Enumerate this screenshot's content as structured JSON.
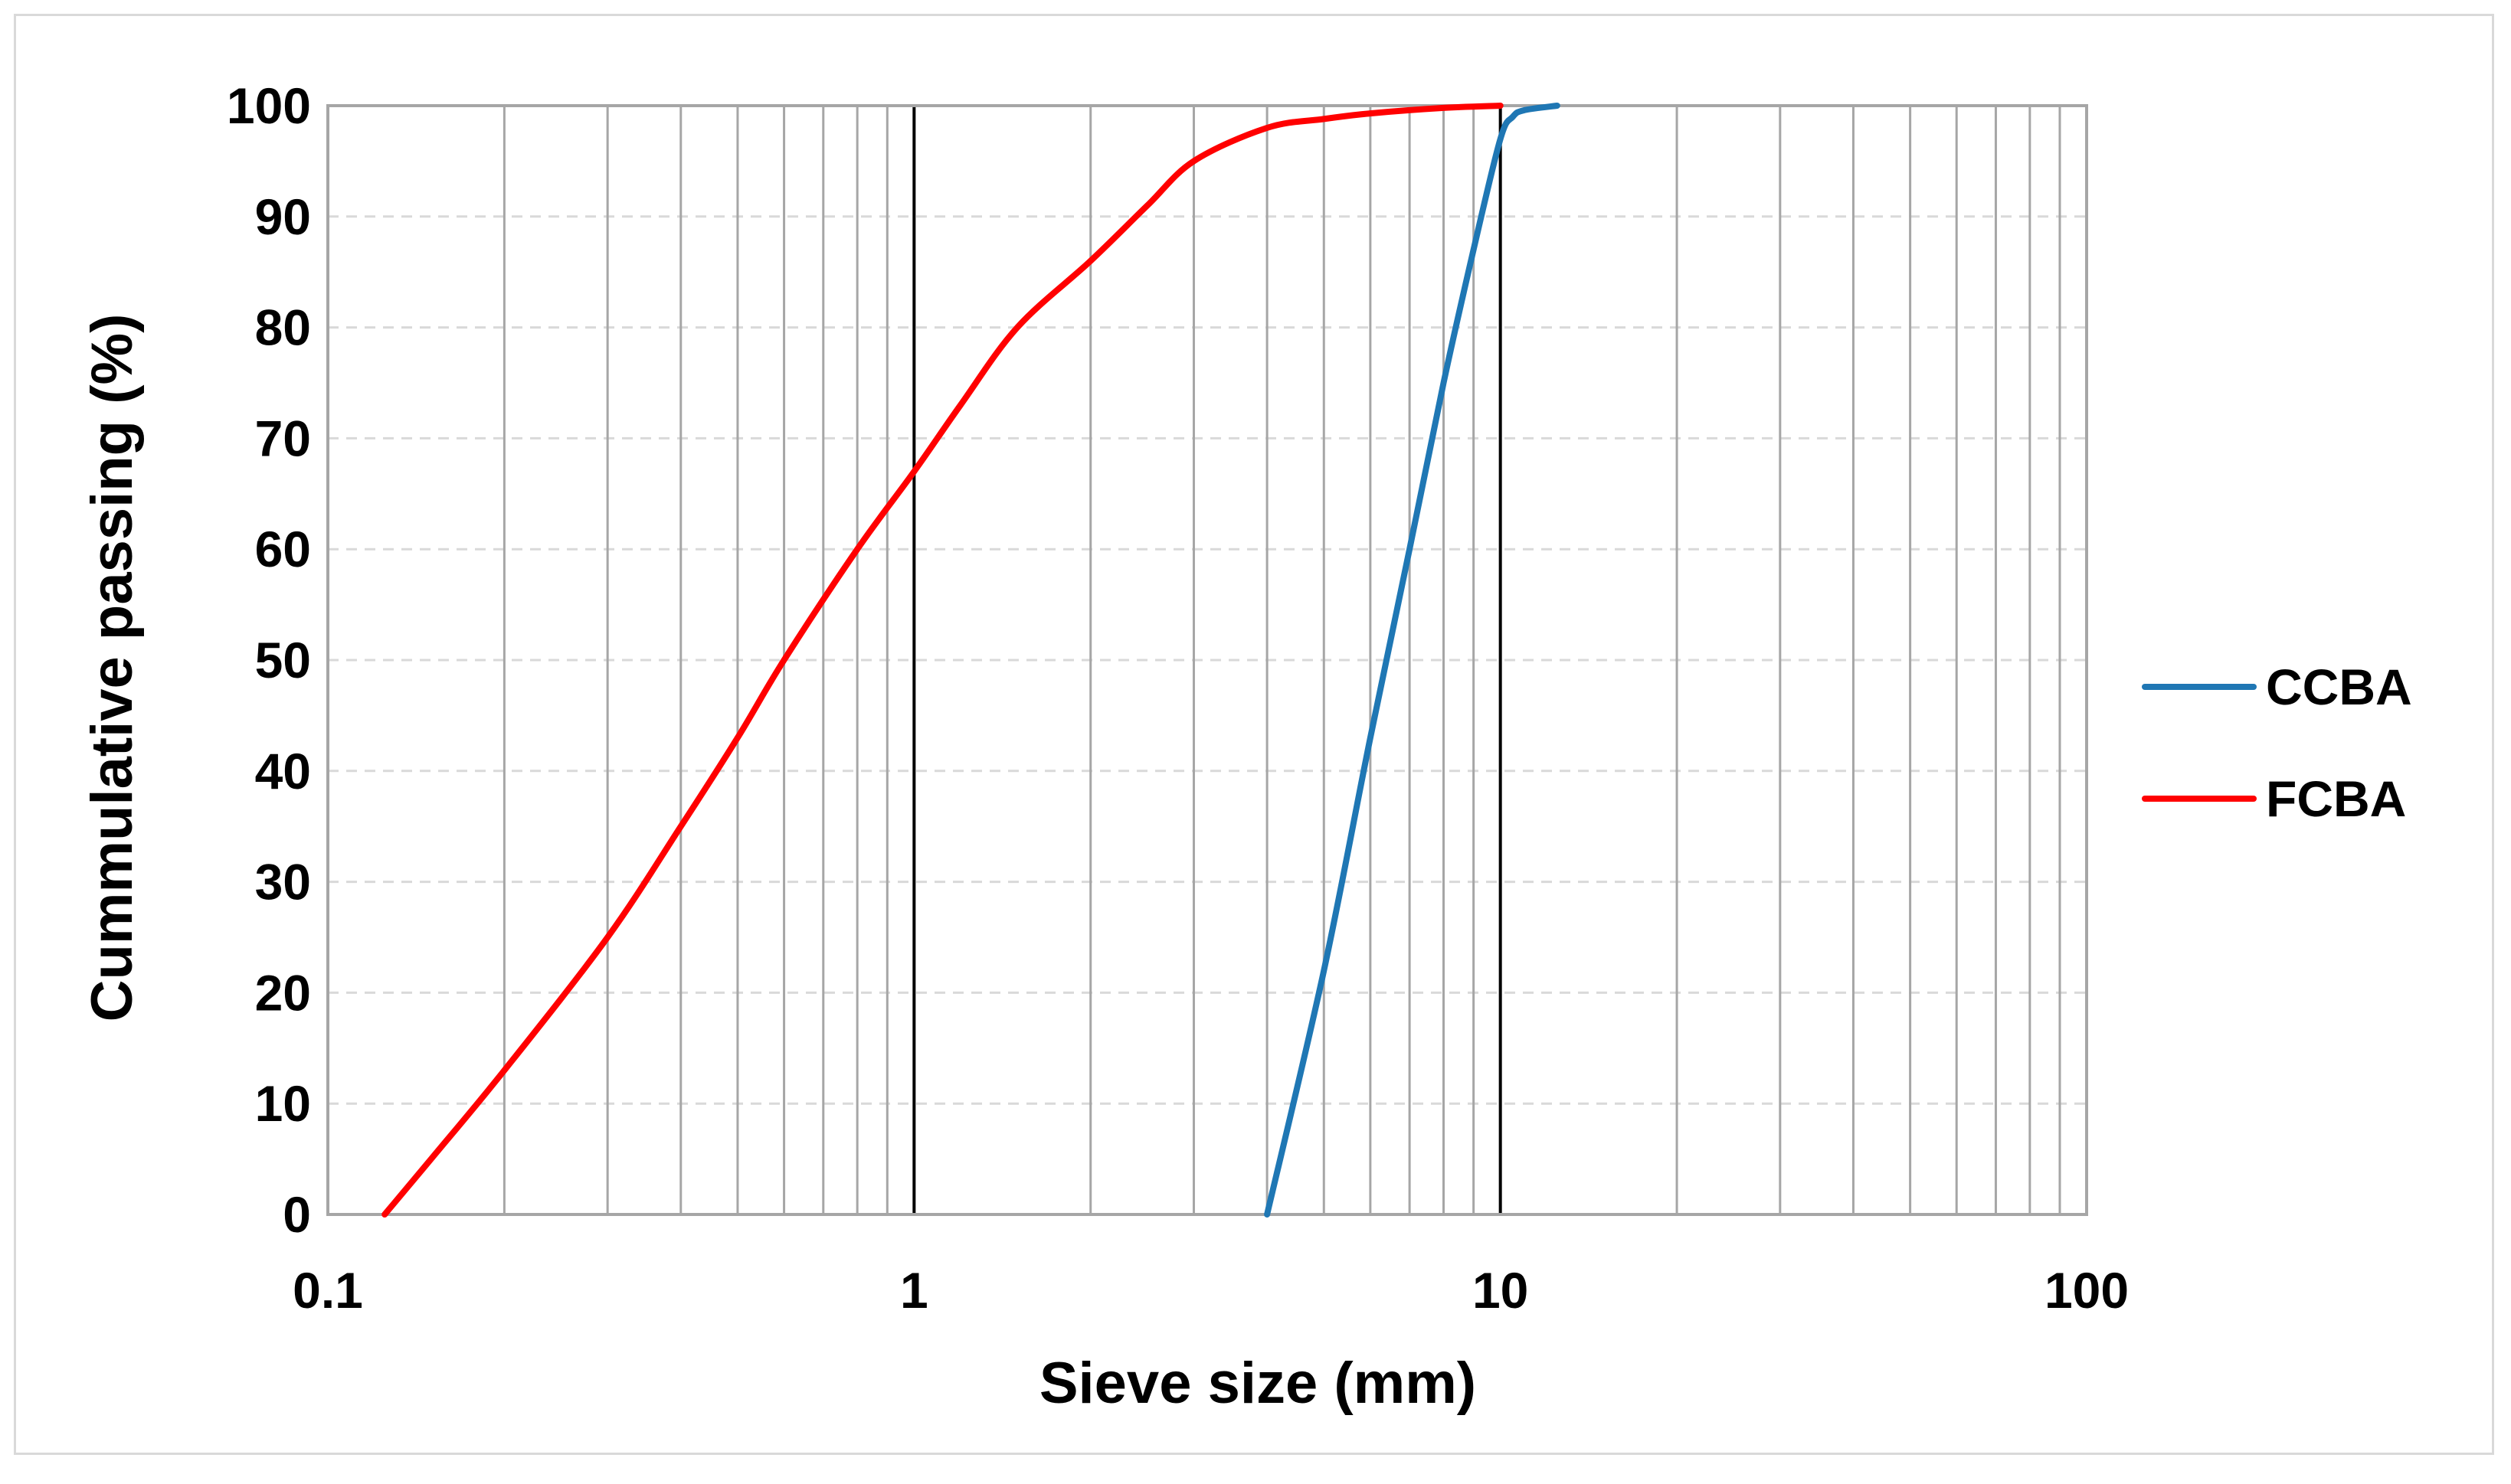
{
  "chart_data": {
    "type": "line",
    "title": "",
    "xlabel": "Sieve size (mm)",
    "ylabel": "Cummulative passing (%)",
    "x_scale": "log",
    "xlim": [
      0.1,
      100
    ],
    "ylim": [
      0,
      100
    ],
    "x_ticks": [
      "0.1",
      "1",
      "10",
      "100"
    ],
    "y_ticks": [
      "0",
      "10",
      "20",
      "30",
      "40",
      "50",
      "60",
      "70",
      "80",
      "90",
      "100"
    ],
    "grid": {
      "vertical_minor": true,
      "horizontal": "dashed",
      "decade_lines_color": "#000000",
      "minor_lines_color": "#a6a6a6",
      "horizontal_lines_color": "#d9d9d9"
    },
    "legend_position": "right",
    "series": [
      {
        "name": "CCBA",
        "color": "#1f77b4",
        "points": [
          [
            4.0,
            0
          ],
          [
            5.0,
            22
          ],
          [
            6.0,
            43
          ],
          [
            7.0,
            60
          ],
          [
            8.0,
            75
          ],
          [
            9.0,
            87
          ],
          [
            10.0,
            97
          ],
          [
            10.5,
            99
          ],
          [
            11.0,
            99.6
          ],
          [
            12.5,
            100
          ]
        ]
      },
      {
        "name": "FCBA",
        "color": "#ff0000",
        "points": [
          [
            0.125,
            0
          ],
          [
            0.15,
            5
          ],
          [
            0.2,
            13
          ],
          [
            0.3,
            25
          ],
          [
            0.4,
            35
          ],
          [
            0.5,
            43
          ],
          [
            0.6,
            50
          ],
          [
            0.8,
            60
          ],
          [
            1.0,
            67
          ],
          [
            1.2,
            73
          ],
          [
            1.5,
            80
          ],
          [
            2.0,
            86
          ],
          [
            2.5,
            91
          ],
          [
            3.0,
            95
          ],
          [
            4.0,
            98
          ],
          [
            5.0,
            98.8
          ],
          [
            6.0,
            99.3
          ],
          [
            8.0,
            99.8
          ],
          [
            10.0,
            100
          ]
        ]
      }
    ]
  }
}
